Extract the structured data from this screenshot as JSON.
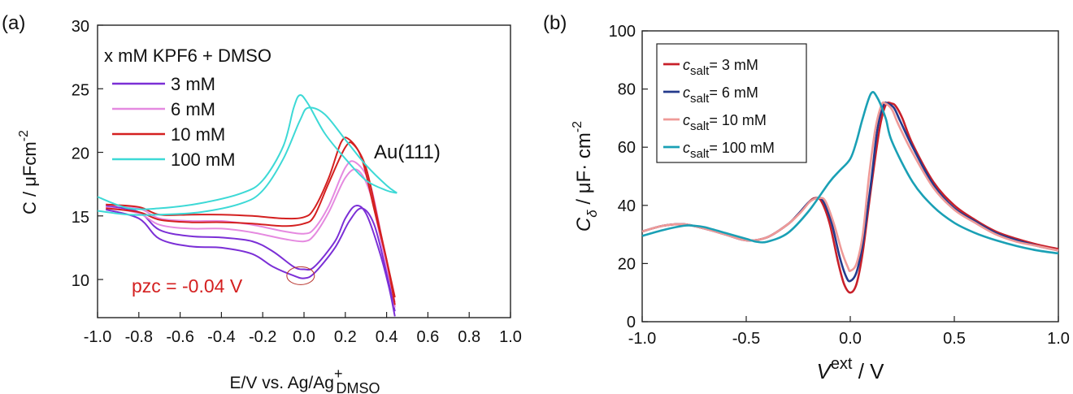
{
  "chart_data": [
    {
      "panel_label": "(a)",
      "type": "line",
      "xlabel_main": "E/V vs. Ag/Ag",
      "xlabel_sup": "+",
      "xlabel_sub": "DMSO",
      "ylabel_main": "C / μFcm",
      "ylabel_sup": "-2",
      "xlim": [
        -1.0,
        1.0
      ],
      "ylim": [
        7,
        30
      ],
      "x_ticks": [
        "-1.0",
        "-0.8",
        "-0.6",
        "-0.4",
        "-0.2",
        "0.0",
        "0.2",
        "0.4",
        "0.6",
        "0.8",
        "1.0"
      ],
      "y_ticks": [
        "10",
        "15",
        "20",
        "25",
        "30"
      ],
      "legend_title": "x mM KPF6 + DMSO",
      "annotation_surface": "Au(111)",
      "annotation_pzc": "pzc = -0.04 V",
      "pzc_x": -0.04,
      "series": [
        {
          "name": "3 mM",
          "color": "#7b2fd6",
          "loops": [
            [
              [
                -0.96,
                15.8
              ],
              [
                -0.8,
                15.3
              ],
              [
                -0.7,
                13.9
              ],
              [
                -0.55,
                13.4
              ],
              [
                -0.4,
                13.3
              ],
              [
                -0.25,
                13.0
              ],
              [
                -0.15,
                12.2
              ],
              [
                -0.05,
                11.0
              ],
              [
                0.0,
                10.8
              ],
              [
                0.05,
                11.0
              ],
              [
                0.15,
                13.0
              ],
              [
                0.2,
                14.8
              ],
              [
                0.25,
                15.8
              ],
              [
                0.3,
                15.2
              ],
              [
                0.36,
                12.5
              ],
              [
                0.41,
                9.5
              ],
              [
                0.44,
                7.1
              ]
            ],
            [
              [
                -0.96,
                15.5
              ],
              [
                -0.8,
                14.8
              ],
              [
                -0.7,
                13.2
              ],
              [
                -0.55,
                12.6
              ],
              [
                -0.4,
                12.5
              ],
              [
                -0.25,
                12.0
              ],
              [
                -0.15,
                11.0
              ],
              [
                -0.05,
                10.3
              ],
              [
                0.0,
                10.1
              ],
              [
                0.05,
                10.5
              ],
              [
                0.15,
                12.5
              ],
              [
                0.22,
                14.6
              ],
              [
                0.28,
                15.6
              ],
              [
                0.34,
                14.3
              ],
              [
                0.4,
                10.5
              ],
              [
                0.44,
                7.5
              ]
            ]
          ]
        },
        {
          "name": "6 mM",
          "color": "#e58ae0",
          "loops": [
            [
              [
                -0.96,
                15.9
              ],
              [
                -0.8,
                15.6
              ],
              [
                -0.7,
                14.8
              ],
              [
                -0.55,
                14.6
              ],
              [
                -0.4,
                14.6
              ],
              [
                -0.25,
                14.3
              ],
              [
                -0.1,
                13.8
              ],
              [
                0.0,
                13.6
              ],
              [
                0.05,
                14.0
              ],
              [
                0.12,
                15.8
              ],
              [
                0.2,
                18.8
              ],
              [
                0.25,
                19.2
              ],
              [
                0.32,
                17.5
              ],
              [
                0.38,
                13.0
              ],
              [
                0.42,
                10.0
              ],
              [
                0.44,
                7.8
              ]
            ],
            [
              [
                -0.96,
                15.7
              ],
              [
                -0.8,
                15.2
              ],
              [
                -0.7,
                14.3
              ],
              [
                -0.55,
                14.0
              ],
              [
                -0.4,
                14.0
              ],
              [
                -0.25,
                13.7
              ],
              [
                -0.1,
                13.2
              ],
              [
                0.0,
                13.0
              ],
              [
                0.05,
                13.5
              ],
              [
                0.12,
                15.3
              ],
              [
                0.2,
                18.0
              ],
              [
                0.26,
                18.6
              ],
              [
                0.32,
                16.8
              ],
              [
                0.38,
                12.5
              ],
              [
                0.44,
                8.2
              ]
            ]
          ]
        },
        {
          "name": "10 mM",
          "color": "#d42020",
          "loops": [
            [
              [
                -0.96,
                15.9
              ],
              [
                -0.8,
                15.7
              ],
              [
                -0.7,
                15.1
              ],
              [
                -0.55,
                15.1
              ],
              [
                -0.4,
                15.1
              ],
              [
                -0.25,
                15.0
              ],
              [
                -0.1,
                14.8
              ],
              [
                0.0,
                14.9
              ],
              [
                0.05,
                15.6
              ],
              [
                0.12,
                18.0
              ],
              [
                0.18,
                20.8
              ],
              [
                0.22,
                21.0
              ],
              [
                0.28,
                19.5
              ],
              [
                0.34,
                15.5
              ],
              [
                0.4,
                11.5
              ],
              [
                0.44,
                8.0
              ]
            ],
            [
              [
                -0.96,
                15.6
              ],
              [
                -0.8,
                15.3
              ],
              [
                -0.7,
                14.7
              ],
              [
                -0.55,
                14.5
              ],
              [
                -0.4,
                14.5
              ],
              [
                -0.25,
                14.4
              ],
              [
                -0.1,
                14.2
              ],
              [
                0.0,
                14.4
              ],
              [
                0.05,
                15.0
              ],
              [
                0.12,
                17.6
              ],
              [
                0.2,
                20.4
              ],
              [
                0.24,
                20.6
              ],
              [
                0.3,
                18.8
              ],
              [
                0.36,
                14.5
              ],
              [
                0.44,
                8.6
              ]
            ]
          ]
        },
        {
          "name": "100 mM",
          "color": "#3dd9d6",
          "loops": [
            [
              [
                -1.0,
                16.5
              ],
              [
                -0.85,
                15.6
              ],
              [
                -0.7,
                15.6
              ],
              [
                -0.5,
                16.0
              ],
              [
                -0.3,
                16.8
              ],
              [
                -0.2,
                17.8
              ],
              [
                -0.1,
                20.5
              ],
              [
                -0.05,
                23.5
              ],
              [
                -0.02,
                24.5
              ],
              [
                0.02,
                23.8
              ],
              [
                0.1,
                21.5
              ],
              [
                0.2,
                19.5
              ],
              [
                0.3,
                17.8
              ],
              [
                0.4,
                17.0
              ],
              [
                0.45,
                16.8
              ]
            ],
            [
              [
                -1.0,
                15.4
              ],
              [
                -0.85,
                15.1
              ],
              [
                -0.7,
                15.1
              ],
              [
                -0.5,
                15.3
              ],
              [
                -0.3,
                16.0
              ],
              [
                -0.2,
                17.0
              ],
              [
                -0.1,
                19.5
              ],
              [
                -0.02,
                22.5
              ],
              [
                0.02,
                23.5
              ],
              [
                0.1,
                23.0
              ],
              [
                0.2,
                21.0
              ],
              [
                0.3,
                19.0
              ],
              [
                0.4,
                17.4
              ],
              [
                0.45,
                16.8
              ]
            ]
          ]
        }
      ]
    },
    {
      "panel_label": "(b)",
      "type": "line",
      "xlabel_main": "V",
      "xlabel_sup": "ext",
      "xlabel_tail": " / V",
      "ylabel_main": "C",
      "ylabel_sub": "δ",
      "ylabel_tail": " /  μF· cm",
      "ylabel_sup": "-2",
      "xlim": [
        -1.0,
        1.0
      ],
      "ylim": [
        0,
        100
      ],
      "x_ticks": [
        "-1.0",
        "-0.5",
        "0.0",
        "0.5",
        "1.0"
      ],
      "y_ticks": [
        "0",
        "20",
        "40",
        "60",
        "80",
        "100"
      ],
      "legend_var": "c",
      "legend_sub": "salt",
      "series": [
        {
          "name": "= 3 mM",
          "color": "#c8202a",
          "x": [
            -1.0,
            -0.9,
            -0.8,
            -0.7,
            -0.6,
            -0.5,
            -0.4,
            -0.3,
            -0.25,
            -0.2,
            -0.17,
            -0.14,
            -0.1,
            -0.06,
            -0.03,
            0.0,
            0.03,
            0.06,
            0.1,
            0.14,
            0.17,
            0.2,
            0.22,
            0.25,
            0.3,
            0.4,
            0.5,
            0.6,
            0.7,
            0.8,
            0.9,
            1.0
          ],
          "y": [
            31,
            33,
            33.5,
            32,
            30,
            28,
            29,
            33.5,
            37,
            41,
            42.5,
            41.5,
            34,
            21,
            13,
            10,
            13,
            24,
            46,
            66,
            74.5,
            75,
            74,
            70,
            61,
            48,
            40,
            35,
            31,
            28.5,
            26.5,
            25
          ]
        },
        {
          "name": "= 6 mM",
          "color": "#243a8c",
          "x": [
            -1.0,
            -0.9,
            -0.8,
            -0.7,
            -0.6,
            -0.5,
            -0.4,
            -0.3,
            -0.25,
            -0.2,
            -0.16,
            -0.13,
            -0.09,
            -0.05,
            -0.02,
            0.0,
            0.03,
            0.06,
            0.1,
            0.13,
            0.16,
            0.18,
            0.21,
            0.24,
            0.3,
            0.4,
            0.5,
            0.6,
            0.7,
            0.8,
            0.9,
            1.0
          ],
          "y": [
            31,
            33,
            33.5,
            32,
            30,
            28,
            29,
            33.5,
            37,
            41,
            42.5,
            41.5,
            34,
            22,
            15.5,
            14,
            17,
            27,
            48,
            66,
            74.5,
            75,
            73.5,
            69,
            60,
            47,
            39,
            34.5,
            30.5,
            28,
            26,
            24.5
          ]
        },
        {
          "name": "= 10 mM",
          "color": "#ef9a98",
          "x": [
            -1.0,
            -0.9,
            -0.8,
            -0.7,
            -0.6,
            -0.5,
            -0.4,
            -0.3,
            -0.24,
            -0.19,
            -0.15,
            -0.12,
            -0.08,
            -0.04,
            -0.01,
            0.0,
            0.03,
            0.06,
            0.09,
            0.12,
            0.15,
            0.17,
            0.2,
            0.23,
            0.3,
            0.4,
            0.5,
            0.6,
            0.7,
            0.8,
            0.9,
            1.0
          ],
          "y": [
            31,
            33,
            33.5,
            32,
            30,
            28,
            29,
            33.5,
            37.5,
            41.5,
            42.5,
            41.5,
            34,
            24,
            18.5,
            17.5,
            20,
            30,
            50,
            66,
            74.5,
            75,
            73,
            68,
            58,
            46,
            38.5,
            34,
            30,
            27.5,
            26,
            24.5
          ]
        },
        {
          "name": "= 100 mM",
          "color": "#1aa0b5",
          "x": [
            -1.0,
            -0.9,
            -0.8,
            -0.75,
            -0.7,
            -0.6,
            -0.5,
            -0.45,
            -0.4,
            -0.3,
            -0.2,
            -0.1,
            -0.05,
            0.0,
            0.03,
            0.06,
            0.1,
            0.13,
            0.17,
            0.2,
            0.3,
            0.4,
            0.5,
            0.6,
            0.7,
            0.8,
            0.9,
            1.0
          ],
          "y": [
            29.5,
            31.5,
            33,
            33,
            32.5,
            30.5,
            28.5,
            27.5,
            27.5,
            30.5,
            38,
            48,
            52,
            56,
            62,
            70,
            78.5,
            77,
            70,
            62,
            48,
            39.5,
            34,
            30.5,
            28,
            26,
            24.5,
            23.5
          ]
        }
      ]
    }
  ]
}
